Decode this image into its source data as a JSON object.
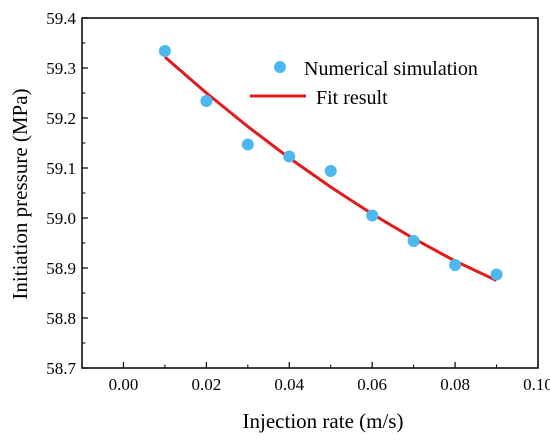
{
  "chart_data": {
    "type": "scatter",
    "xlabel": "Injection rate  (m/s)",
    "ylabel": "Initiation pressure (MPa)",
    "xlim": [
      -0.01,
      0.1
    ],
    "ylim": [
      58.7,
      59.4
    ],
    "x_ticks": [
      0.0,
      0.02,
      0.04,
      0.06,
      0.08,
      0.1
    ],
    "x_tick_labels": [
      "0.00",
      "0.02",
      "0.04",
      "0.06",
      "0.08",
      "0.10"
    ],
    "y_ticks": [
      58.7,
      58.8,
      58.9,
      59.0,
      59.1,
      59.2,
      59.3,
      59.4
    ],
    "y_tick_labels": [
      "58.7",
      "58.8",
      "58.9",
      "59.0",
      "59.1",
      "59.2",
      "59.3",
      "59.4"
    ],
    "grid": false,
    "legend_position": "top-right",
    "series": [
      {
        "name": "Numerical simulation",
        "kind": "scatter",
        "color": "#4db8f0",
        "x": [
          0.01,
          0.02,
          0.03,
          0.04,
          0.05,
          0.06,
          0.07,
          0.08,
          0.09
        ],
        "y": [
          59.334,
          59.234,
          59.147,
          59.123,
          59.094,
          59.005,
          58.954,
          58.906,
          58.887
        ]
      },
      {
        "name": "Fit result",
        "kind": "line",
        "color": "#e31a1c",
        "x": [
          0.01,
          0.02,
          0.03,
          0.04,
          0.05,
          0.06,
          0.07,
          0.08,
          0.09
        ],
        "y": [
          59.322,
          59.25,
          59.183,
          59.12,
          59.062,
          59.008,
          58.959,
          58.914,
          58.875
        ]
      }
    ]
  }
}
